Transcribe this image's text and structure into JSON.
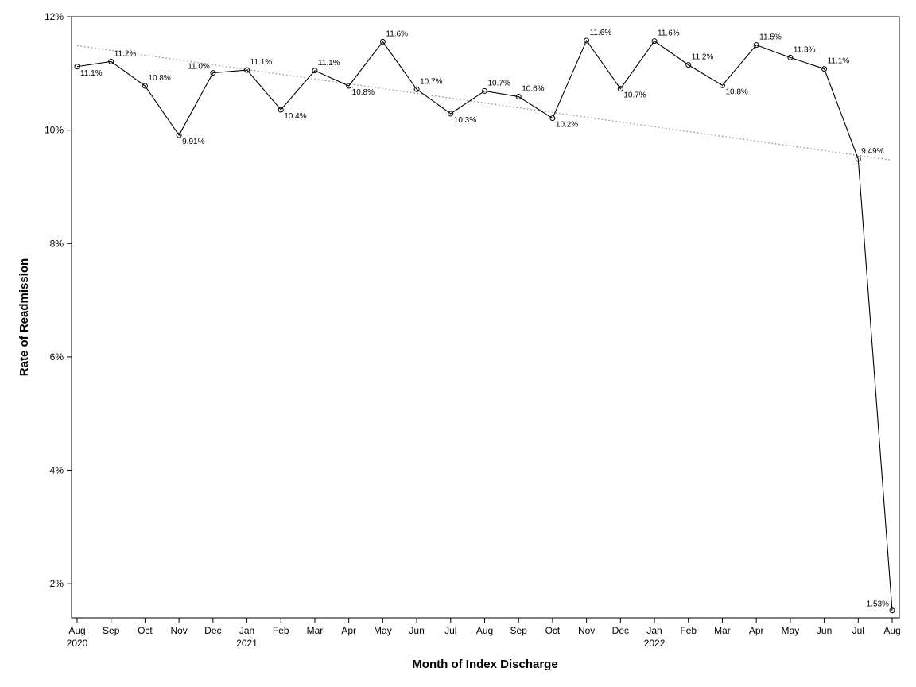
{
  "chart_data": {
    "type": "line",
    "title": "",
    "xlabel": "Month of Index Discharge",
    "ylabel": "Rate of Readmission",
    "ylim": [
      1.4,
      12.0
    ],
    "yticks": [
      "2%",
      "4%",
      "6%",
      "8%",
      "10%",
      "12%"
    ],
    "ytick_values": [
      2,
      4,
      6,
      8,
      10,
      12
    ],
    "grid": false,
    "legend": "none",
    "categories": [
      "Aug",
      "Sep",
      "Oct",
      "Nov",
      "Dec",
      "Jan",
      "Feb",
      "Mar",
      "Apr",
      "May",
      "Jun",
      "Jul",
      "Aug",
      "Sep",
      "Oct",
      "Nov",
      "Dec",
      "Jan",
      "Feb",
      "Mar",
      "Apr",
      "May",
      "Jun",
      "Jul",
      "Aug"
    ],
    "year_labels": {
      "0": "2020",
      "5": "2021",
      "17": "2022"
    },
    "series": [
      {
        "values": [
          11.12,
          11.21,
          10.78,
          9.91,
          11.01,
          11.06,
          10.36,
          11.05,
          10.78,
          11.56,
          10.72,
          10.29,
          10.69,
          10.59,
          10.21,
          11.58,
          10.73,
          11.57,
          11.15,
          10.79,
          11.5,
          11.28,
          11.08,
          9.49,
          1.53
        ],
        "labels": [
          "11.1%",
          "11.2%",
          "10.8%",
          "9.91%",
          "11.0%",
          "11.1%",
          "10.4%",
          "11.1%",
          "10.8%",
          "11.6%",
          "10.7%",
          "10.3%",
          "10.7%",
          "10.6%",
          "10.2%",
          "11.6%",
          "10.7%",
          "11.6%",
          "11.2%",
          "10.8%",
          "11.5%",
          "11.3%",
          "11.1%",
          "9.49%",
          "1.53%"
        ],
        "label_positions": [
          "below",
          "above",
          "above",
          "below",
          "left",
          "above",
          "below",
          "above",
          "below",
          "above",
          "above",
          "below",
          "above",
          "above",
          "below",
          "above",
          "below",
          "above",
          "above",
          "below",
          "above",
          "above",
          "above",
          "above",
          "left"
        ]
      }
    ],
    "trend_line": {
      "start_value": 11.49,
      "end_value": 9.47
    },
    "colors": {
      "line": "#000000",
      "trend": "#888888"
    }
  }
}
